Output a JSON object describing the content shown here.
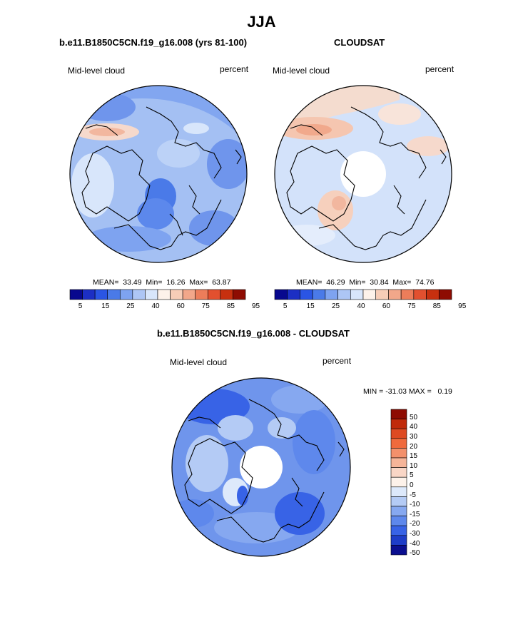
{
  "title": "JJA",
  "panels": [
    {
      "id": "model",
      "case_title": "b.e11.B1850C5CN.f19_g16.008 (yrs 81-100)",
      "left_label": "Mid-level cloud",
      "right_label": "percent",
      "stats": "MEAN=  33.49  Min=  16.26  Max=  63.87",
      "has_hole": false,
      "palette": "abs"
    },
    {
      "id": "obs",
      "case_title": "CLOUDSAT",
      "left_label": "Mid-level cloud",
      "right_label": "percent",
      "stats": "MEAN=  46.29  Min=  30.84  Max=  74.76",
      "has_hole": true,
      "palette": "abs"
    },
    {
      "id": "diff",
      "case_title": "b.e11.B1850C5CN.f19_g16.008 - CLOUDSAT",
      "left_label": "Mid-level cloud",
      "right_label": "percent",
      "stats": "MIN = -31.03 MAX =   0.19",
      "has_hole": true,
      "palette": "diff"
    }
  ],
  "colorbars": {
    "abs": {
      "labels": [
        "5",
        "15",
        "25",
        "40",
        "60",
        "75",
        "85",
        "95"
      ],
      "colors": [
        "#08088e",
        "#1c2fc4",
        "#2a55e4",
        "#4a7ae8",
        "#7ea3f0",
        "#adc6f5",
        "#d8e6fb",
        "#fdf2ea",
        "#f7cdb7",
        "#f2a78a",
        "#ec7d5a",
        "#e2502f",
        "#c7300f",
        "#8e0c02"
      ]
    },
    "diff": {
      "labels": [
        "50",
        "40",
        "30",
        "20",
        "15",
        "10",
        "5",
        "0",
        "-5",
        "-10",
        "-15",
        "-20",
        "-30",
        "-40",
        "-50"
      ],
      "colors": [
        "#8e0c02",
        "#c02a0a",
        "#de4a22",
        "#ef6a3d",
        "#f3906b",
        "#f6b599",
        "#f9d6c6",
        "#fdf2ea",
        "#dde9fb",
        "#b4cbf5",
        "#86a8f0",
        "#5e88ec",
        "#3863e6",
        "#1e3dc8",
        "#0b0f90"
      ]
    }
  }
}
